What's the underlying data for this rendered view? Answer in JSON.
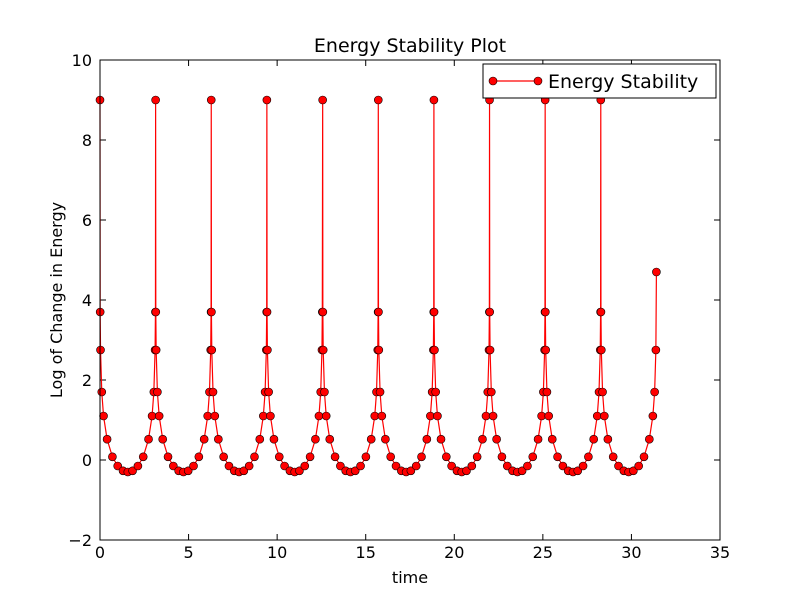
{
  "chart_data": {
    "type": "line",
    "title": "Energy Stability Plot",
    "x_label": "time",
    "y_label": "Log of Change in Energy",
    "x": [
      0,
      0.01,
      0.03,
      0.1,
      0.2,
      0.4,
      0.7,
      1.0,
      1.3,
      1.57,
      1.84,
      2.14,
      2.44,
      2.74,
      2.94,
      3.04,
      3.11,
      3.13,
      3.14,
      3.15,
      3.17,
      3.24,
      3.34,
      3.54,
      3.84,
      4.14,
      4.44,
      4.71,
      4.98,
      5.28,
      5.58,
      5.88,
      6.08,
      6.18,
      6.25,
      6.27,
      6.28,
      6.29,
      6.31,
      6.38,
      6.48,
      6.68,
      6.98,
      7.28,
      7.58,
      7.85,
      8.12,
      8.42,
      8.72,
      9.02,
      9.22,
      9.32,
      9.39,
      9.41,
      9.42,
      9.43,
      9.45,
      9.52,
      9.62,
      9.82,
      10.12,
      10.42,
      10.72,
      10.99,
      11.26,
      11.56,
      11.86,
      12.16,
      12.36,
      12.46,
      12.53,
      12.55,
      12.57,
      12.58,
      12.6,
      12.67,
      12.77,
      12.97,
      13.27,
      13.57,
      13.87,
      14.14,
      14.41,
      14.71,
      15.01,
      15.31,
      15.51,
      15.61,
      15.68,
      15.7,
      15.71,
      15.72,
      15.74,
      15.81,
      15.91,
      16.11,
      16.41,
      16.71,
      17.01,
      17.28,
      17.55,
      17.85,
      18.15,
      18.45,
      18.65,
      18.75,
      18.82,
      18.84,
      18.85,
      18.86,
      18.88,
      18.95,
      19.05,
      19.25,
      19.55,
      19.85,
      20.15,
      20.42,
      20.69,
      20.99,
      21.29,
      21.59,
      21.79,
      21.89,
      21.96,
      21.98,
      21.99,
      22.0,
      22.02,
      22.09,
      22.19,
      22.39,
      22.69,
      22.99,
      23.29,
      23.56,
      23.83,
      24.13,
      24.43,
      24.73,
      24.93,
      25.03,
      25.1,
      25.12,
      25.13,
      25.14,
      25.16,
      25.23,
      25.33,
      25.53,
      25.83,
      26.13,
      26.43,
      26.7,
      26.97,
      27.27,
      27.57,
      27.87,
      28.07,
      28.17,
      28.24,
      28.26,
      28.27,
      28.28,
      28.3,
      28.37,
      28.47,
      28.67,
      28.97,
      29.27,
      29.57,
      29.84,
      30.11,
      30.41,
      30.71,
      31.01,
      31.21,
      31.31,
      31.38,
      31.41
    ],
    "series": [
      {
        "name": "Energy Stability",
        "color": "#ff0000",
        "values": [
          9,
          3.7,
          2.75,
          1.7,
          1.1,
          0.52,
          0.08,
          -0.15,
          -0.27,
          -0.3,
          -0.27,
          -0.15,
          0.08,
          0.52,
          1.1,
          1.7,
          2.75,
          3.7,
          9,
          3.7,
          2.75,
          1.7,
          1.1,
          0.52,
          0.08,
          -0.15,
          -0.27,
          -0.3,
          -0.27,
          -0.15,
          0.08,
          0.52,
          1.1,
          1.7,
          2.75,
          3.7,
          9,
          3.7,
          2.75,
          1.7,
          1.1,
          0.52,
          0.08,
          -0.15,
          -0.27,
          -0.3,
          -0.27,
          -0.15,
          0.08,
          0.52,
          1.1,
          1.7,
          2.75,
          3.7,
          9,
          3.7,
          2.75,
          1.7,
          1.1,
          0.52,
          0.08,
          -0.15,
          -0.27,
          -0.3,
          -0.27,
          -0.15,
          0.08,
          0.52,
          1.1,
          1.7,
          2.75,
          3.7,
          9,
          3.7,
          2.75,
          1.7,
          1.1,
          0.52,
          0.08,
          -0.15,
          -0.27,
          -0.3,
          -0.27,
          -0.15,
          0.08,
          0.52,
          1.1,
          1.7,
          2.75,
          3.7,
          9,
          3.7,
          2.75,
          1.7,
          1.1,
          0.52,
          0.08,
          -0.15,
          -0.27,
          -0.3,
          -0.27,
          -0.15,
          0.08,
          0.52,
          1.1,
          1.7,
          2.75,
          3.7,
          9,
          3.7,
          2.75,
          1.7,
          1.1,
          0.52,
          0.08,
          -0.15,
          -0.27,
          -0.3,
          -0.27,
          -0.15,
          0.08,
          0.52,
          1.1,
          1.7,
          2.75,
          3.7,
          9,
          3.7,
          2.75,
          1.7,
          1.1,
          0.52,
          0.08,
          -0.15,
          -0.27,
          -0.3,
          -0.27,
          -0.15,
          0.08,
          0.52,
          1.1,
          1.7,
          2.75,
          3.7,
          9,
          3.7,
          2.75,
          1.7,
          1.1,
          0.52,
          0.08,
          -0.15,
          -0.27,
          -0.3,
          -0.27,
          -0.15,
          0.08,
          0.52,
          1.1,
          1.7,
          2.75,
          3.7,
          9,
          3.7,
          2.75,
          1.7,
          1.1,
          0.52,
          0.08,
          -0.15,
          -0.27,
          -0.3,
          -0.27,
          -0.15,
          0.08,
          0.52,
          1.1,
          1.7,
          2.75,
          4.7
        ]
      }
    ],
    "xlim": [
      0,
      35
    ],
    "xticks": [
      0,
      5,
      10,
      15,
      20,
      25,
      30,
      35
    ],
    "ylim": [
      -2,
      10
    ],
    "yticks": [
      {
        "value": -2,
        "label": "−2"
      },
      0,
      2,
      4,
      6,
      8,
      10
    ],
    "legend": "upper right"
  }
}
